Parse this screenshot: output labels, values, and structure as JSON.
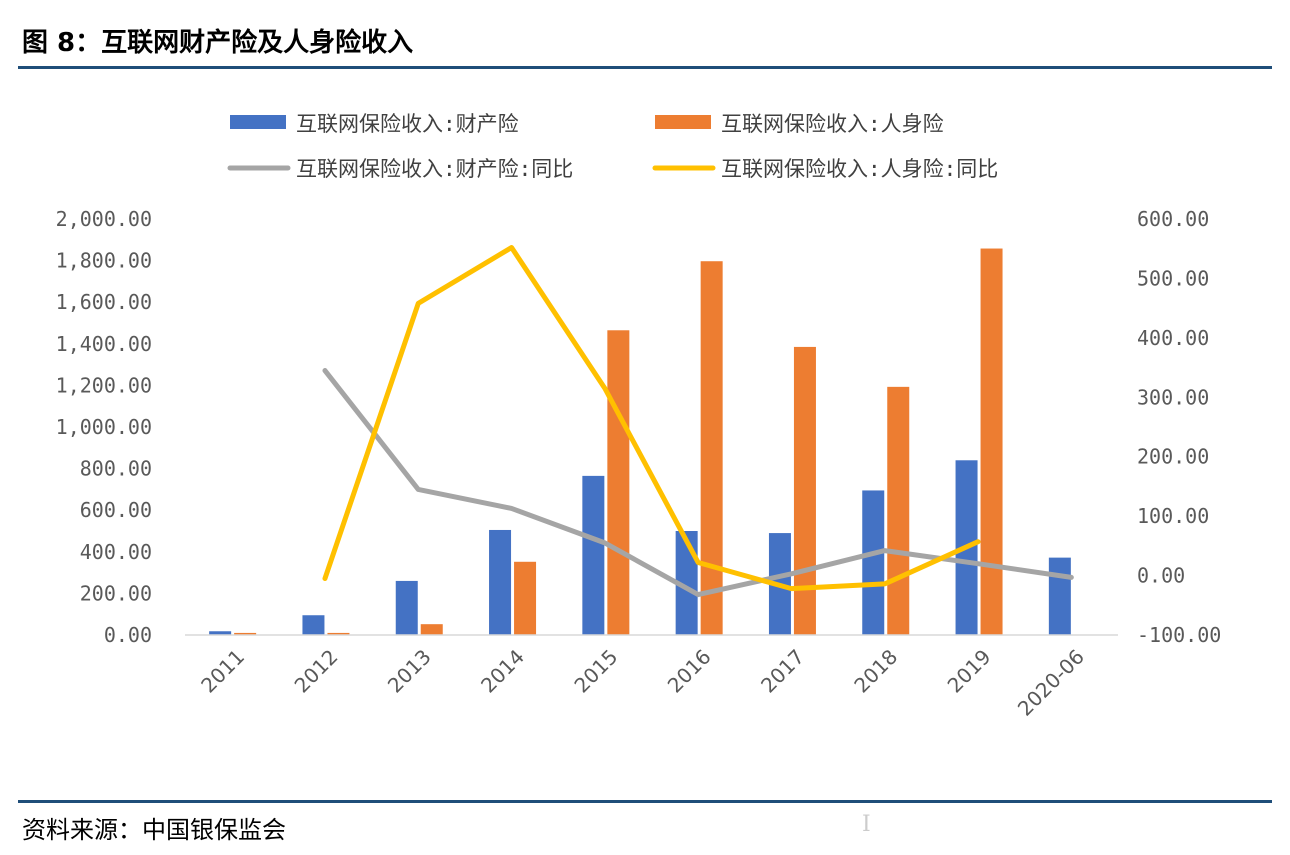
{
  "figure": {
    "title": "图 8：互联网财产险及人身险收入",
    "source": "资料来源：中国银保监会",
    "cursor_glyph": "I"
  },
  "chart_data": {
    "type": "bar",
    "categories": [
      "2011",
      "2012",
      "2013",
      "2014",
      "2015",
      "2016",
      "2017",
      "2018",
      "2019",
      "2020-06"
    ],
    "y_left": {
      "min": 0,
      "max": 2000,
      "step": 200,
      "tick_labels": [
        "0.00",
        "200.00",
        "400.00",
        "600.00",
        "800.00",
        "1,000.00",
        "1,200.00",
        "1,400.00",
        "1,600.00",
        "1,800.00",
        "2,000.00"
      ]
    },
    "y_right": {
      "min": -100,
      "max": 600,
      "step": 100,
      "tick_labels": [
        "-100.00",
        "0.00",
        "100.00",
        "200.00",
        "300.00",
        "400.00",
        "500.00",
        "600.00"
      ]
    },
    "legend_position": "top",
    "grid": false,
    "series": [
      {
        "name": "互联网保险收入:财产险",
        "kind": "bar",
        "axis": "left",
        "color": "#4472C4",
        "values": [
          18,
          95,
          260,
          505,
          765,
          500,
          490,
          695,
          840,
          372
        ]
      },
      {
        "name": "互联网保险收入:人身险",
        "kind": "bar",
        "axis": "left",
        "color": "#ED7D31",
        "values": [
          10,
          10,
          52,
          352,
          1465,
          1797,
          1385,
          1193,
          1858,
          null
        ]
      },
      {
        "name": "互联网保险收入:财产险:同比",
        "kind": "line",
        "axis": "right",
        "color": "#A5A5A5",
        "values": [
          null,
          345,
          145,
          113,
          55,
          -32,
          3,
          42,
          20,
          -3
        ]
      },
      {
        "name": "互联网保险收入:人身险:同比",
        "kind": "line",
        "axis": "right",
        "color": "#FFC000",
        "values": [
          null,
          -5,
          458,
          552,
          315,
          22,
          -22,
          -14,
          57,
          null
        ]
      }
    ]
  }
}
